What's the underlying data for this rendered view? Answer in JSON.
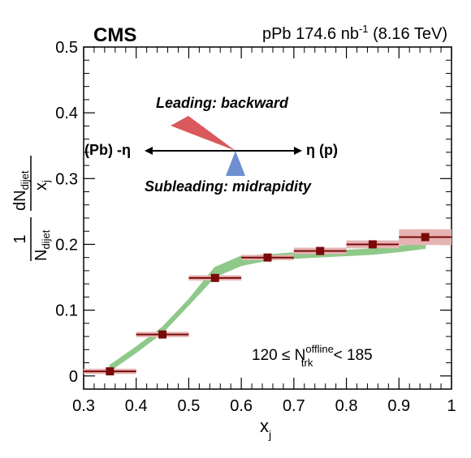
{
  "experiment_label": "CMS",
  "dataset_label": {
    "prefix": "pPb 174.6 nb",
    "exponent": "-1",
    "suffix": " (8.16 TeV)"
  },
  "diagram": {
    "leading_label": "Leading: backward",
    "subleading_label": "Subleading: midrapidity",
    "left_label": "(Pb) -η",
    "right_label": "η (p)",
    "leading_color": "#d9595c",
    "subleading_color": "#6f8fd0"
  },
  "selection_label": {
    "prefix": "120 ≤ N",
    "superscript": "offline",
    "subscript": "trk",
    "suffix": " < 185"
  },
  "chart_data": {
    "type": "scatter",
    "xlabel": "x",
    "xlabel_sub": "j",
    "ylabel": {
      "frac1_num": "1",
      "frac1_den": "N",
      "frac1_den_sub": "dijet",
      "frac2_num": "dN",
      "frac2_num_sub": "dijet",
      "frac2_den": "x",
      "frac2_den_sub": "j"
    },
    "xlim": [
      0.3,
      1.0
    ],
    "ylim": [
      -0.02,
      0.5
    ],
    "x_ticks": [
      "0.3",
      "0.4",
      "0.5",
      "0.6",
      "0.7",
      "0.8",
      "0.9",
      "1"
    ],
    "y_ticks": [
      "0",
      "0.1",
      "0.2",
      "0.3",
      "0.4",
      "0.5"
    ],
    "data_color": "#7a0a0a",
    "syst_color": "#e6b3b3",
    "band_color": "#8fc98a",
    "series": [
      {
        "x": [
          0.35,
          0.45,
          0.55,
          0.65,
          0.75,
          0.85,
          0.95
        ],
        "y": [
          0.007,
          0.063,
          0.149,
          0.18,
          0.19,
          0.2,
          0.211
        ],
        "x_err": [
          0.05,
          0.05,
          0.05,
          0.05,
          0.05,
          0.05,
          0.05
        ],
        "y_syst": [
          0.004,
          0.004,
          0.004,
          0.004,
          0.005,
          0.006,
          0.012
        ]
      }
    ],
    "band": {
      "x": [
        0.35,
        0.4,
        0.45,
        0.5,
        0.55,
        0.6,
        0.65,
        0.7,
        0.75,
        0.8,
        0.85,
        0.9,
        0.95
      ],
      "y": [
        0.012,
        0.04,
        0.07,
        0.112,
        0.158,
        0.175,
        0.18,
        0.183,
        0.185,
        0.187,
        0.189,
        0.193,
        0.198
      ]
    }
  }
}
